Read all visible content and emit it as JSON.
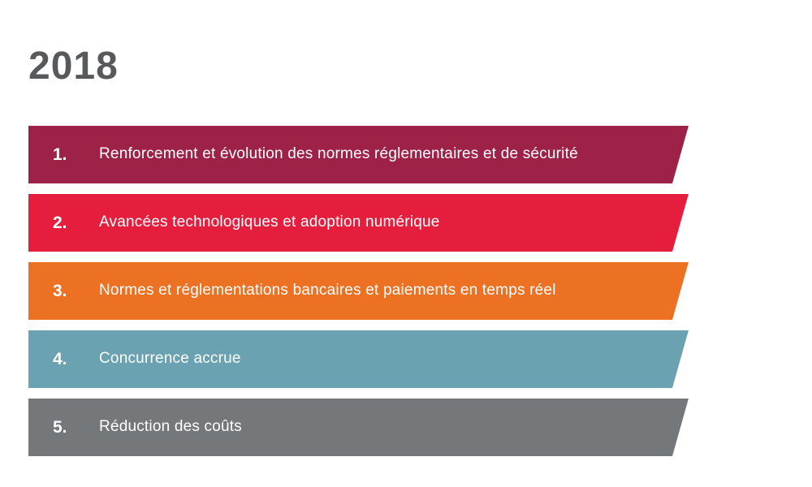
{
  "page": {
    "background": "#ffffff",
    "text_color": "#ffffff",
    "title_color": "#58595b"
  },
  "title": "2018",
  "list": {
    "items": [
      {
        "number": "1.",
        "label": "Renforcement et évolution des normes réglementaires et de sécurité",
        "color": "#9e2247"
      },
      {
        "number": "2.",
        "label": "Avancées technologiques et adoption numérique",
        "color": "#e61e3d"
      },
      {
        "number": "3.",
        "label": "Normes et réglementations bancaires et paiements en temps réel",
        "color": "#ec7123"
      },
      {
        "number": "4.",
        "label": "Concurrence accrue",
        "color": "#6ba2b1"
      },
      {
        "number": "5.",
        "label": "Réduction des coûts",
        "color": "#75787b"
      }
    ]
  }
}
